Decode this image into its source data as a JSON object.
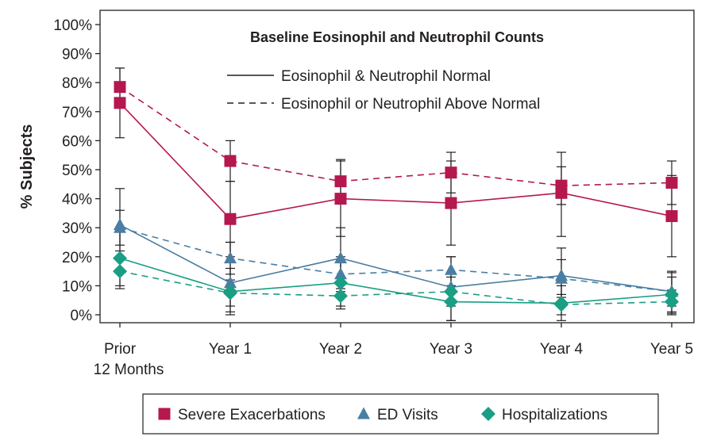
{
  "chart_data": {
    "type": "line",
    "title": "Baseline Eosinophil and Neutrophil Counts",
    "ylabel": "% Subjects",
    "xlabel": "",
    "ylim": [
      0,
      100
    ],
    "y_ticks": [
      0,
      10,
      20,
      30,
      40,
      50,
      60,
      70,
      80,
      90,
      100
    ],
    "y_tick_format": "{v}%",
    "categories": [
      [
        "Prior",
        "12 Months"
      ],
      [
        "Year 1"
      ],
      [
        "Year 2"
      ],
      [
        "Year 3"
      ],
      [
        "Year 4"
      ],
      [
        "Year 5"
      ]
    ],
    "line_styles": [
      {
        "label": "Eosinophil & Neutrophil Normal",
        "dash": "solid"
      },
      {
        "label": "Eosinophil or Neutrophil Above Normal",
        "dash": "dashed"
      }
    ],
    "marker_legend": [
      {
        "label": "Severe Exacerbations",
        "marker": "square",
        "color": "#b5174f"
      },
      {
        "label": "ED Visits",
        "marker": "triangle",
        "color": "#4a7ea3"
      },
      {
        "label": "Hospitalizations",
        "marker": "diamond",
        "color": "#1a9e84"
      }
    ],
    "series": [
      {
        "outcome": "Severe Exacerbations",
        "group": "Eosinophil & Neutrophil Normal",
        "color": "#b5174f",
        "marker": "square",
        "dash": "solid",
        "values": [
          73,
          33,
          40,
          38.5,
          42,
          34
        ],
        "error_low": [
          61,
          20,
          27,
          24,
          27,
          20
        ],
        "error_high": [
          85,
          46,
          53,
          53,
          56,
          48
        ]
      },
      {
        "outcome": "Severe Exacerbations",
        "group": "Eosinophil or Neutrophil Above Normal",
        "color": "#b5174f",
        "marker": "square",
        "dash": "dashed",
        "values": [
          78.5,
          53,
          46,
          49,
          44.5,
          45.5
        ],
        "error_low": [
          72,
          46,
          39,
          42,
          38,
          38
        ],
        "error_high": [
          85,
          60,
          53.5,
          56,
          51,
          53
        ]
      },
      {
        "outcome": "ED Visits",
        "group": "Eosinophil & Neutrophil Normal",
        "color": "#4a7ea3",
        "marker": "triangle",
        "dash": "solid",
        "values": [
          31,
          11,
          19.5,
          9.5,
          13.5,
          8
        ],
        "error_low": [
          19,
          1,
          9,
          -2,
          4,
          0
        ],
        "error_high": [
          43.5,
          25,
          30,
          20,
          23,
          15
        ]
      },
      {
        "outcome": "ED Visits",
        "group": "Eosinophil or Neutrophil Above Normal",
        "color": "#4a7ea3",
        "marker": "triangle",
        "dash": "dashed",
        "values": [
          30,
          19.5,
          14,
          15.5,
          12.5,
          8
        ],
        "error_low": [
          24,
          14,
          8,
          10,
          6,
          3
        ],
        "error_high": [
          36,
          25,
          20,
          20,
          19,
          13
        ]
      },
      {
        "outcome": "Hospitalizations",
        "group": "Eosinophil & Neutrophil Normal",
        "color": "#1a9e84",
        "marker": "diamond",
        "dash": "solid",
        "values": [
          19.5,
          8,
          11,
          4.5,
          4,
          7
        ],
        "error_low": [
          10,
          0,
          3,
          -2,
          -2,
          1
        ],
        "error_high": [
          30,
          16,
          19,
          10,
          10,
          14.5
        ]
      },
      {
        "outcome": "Hospitalizations",
        "group": "Eosinophil or Neutrophil Above Normal",
        "color": "#1a9e84",
        "marker": "diamond",
        "dash": "dashed",
        "values": [
          15,
          7.5,
          6.5,
          8,
          3.5,
          4.5
        ],
        "error_low": [
          9,
          3,
          2,
          3,
          0,
          0.5
        ],
        "error_high": [
          22,
          12,
          11,
          13,
          7,
          8.5
        ]
      }
    ]
  }
}
